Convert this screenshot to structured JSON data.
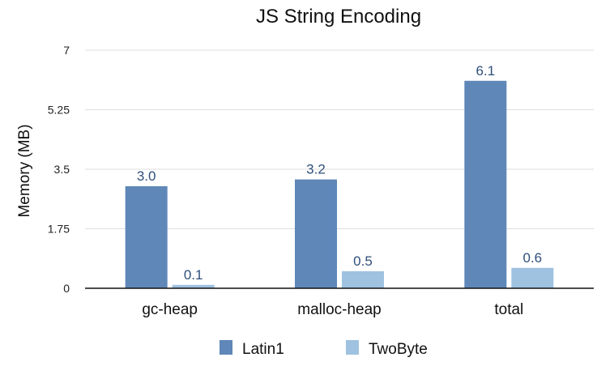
{
  "chart_data": {
    "type": "bar",
    "title": "JS String Encoding",
    "xlabel": "",
    "ylabel": "Memory (MB)",
    "ylim": [
      0,
      7
    ],
    "yticks": [
      0,
      1.75,
      3.5,
      5.25,
      7
    ],
    "ytick_labels": [
      "0",
      "1.75",
      "3.5",
      "5.25",
      "7"
    ],
    "categories": [
      "gc-heap",
      "malloc-heap",
      "total"
    ],
    "series": [
      {
        "name": "Latin1",
        "color": "#5f87b8",
        "values": [
          3.0,
          3.2,
          6.1
        ],
        "labels": [
          "3.0",
          "3.2",
          "6.1"
        ]
      },
      {
        "name": "TwoByte",
        "color": "#9fc2e0",
        "values": [
          0.1,
          0.5,
          0.6
        ],
        "labels": [
          "0.1",
          "0.5",
          "0.6"
        ]
      }
    ],
    "grid": true,
    "legend_position": "bottom"
  }
}
